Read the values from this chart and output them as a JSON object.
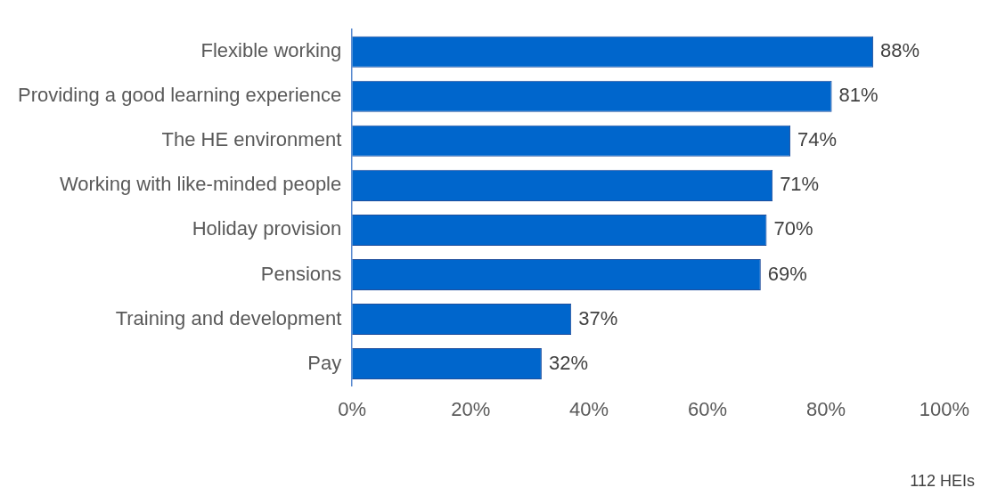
{
  "chart_data": {
    "type": "bar",
    "orientation": "horizontal",
    "categories": [
      "Flexible working",
      "Providing a good learning experience",
      "The HE environment",
      "Working with like-minded people",
      "Holiday provision",
      "Pensions",
      "Training and development",
      "Pay"
    ],
    "values": [
      88,
      81,
      74,
      71,
      70,
      69,
      37,
      32
    ],
    "value_labels": [
      "88%",
      "81%",
      "74%",
      "71%",
      "70%",
      "69%",
      "37%",
      "32%"
    ],
    "color": "#0066cc",
    "xlim": [
      0,
      100
    ],
    "xticks": [
      {
        "value": 0,
        "label": "0%"
      },
      {
        "value": 20,
        "label": "20%"
      },
      {
        "value": 40,
        "label": "40%"
      },
      {
        "value": 60,
        "label": "60%"
      },
      {
        "value": 80,
        "label": "80%"
      },
      {
        "value": 100,
        "label": "100%"
      }
    ],
    "grid": false,
    "legend": false,
    "annotations": [
      "112 HEIs"
    ]
  }
}
